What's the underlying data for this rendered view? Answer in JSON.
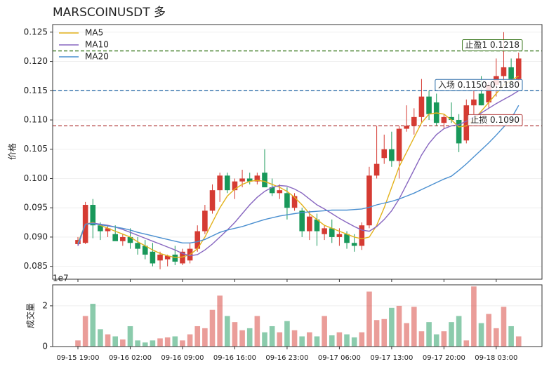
{
  "chart_data": {
    "type": "candlestick",
    "title": "MARSCOINUSDT  多",
    "ylabel": "价格",
    "categories": [
      "09-15 19:00",
      null,
      null,
      null,
      null,
      null,
      null,
      "09-16 02:00",
      null,
      null,
      null,
      null,
      null,
      null,
      "09-16 09:00",
      null,
      null,
      null,
      null,
      null,
      null,
      "09-16 16:00",
      null,
      null,
      null,
      null,
      null,
      null,
      "09-16 23:00",
      null,
      null,
      null,
      null,
      null,
      null,
      "09-17 06:00",
      null,
      null,
      null,
      null,
      null,
      null,
      "09-17 13:00",
      null,
      null,
      null,
      null,
      null,
      null,
      "09-17 20:00",
      null,
      null,
      null,
      null,
      null,
      null,
      "09-18 03:00",
      null,
      null,
      null
    ],
    "open": [
      0.0888,
      0.089,
      0.0955,
      0.092,
      0.091,
      0.0905,
      0.0893,
      0.09,
      0.089,
      0.0885,
      0.0875,
      0.086,
      0.0862,
      0.087,
      0.0855,
      0.086,
      0.088,
      0.091,
      0.0945,
      0.098,
      0.1005,
      0.098,
      0.0995,
      0.1,
      0.0995,
      0.101,
      0.0985,
      0.0975,
      0.0975,
      0.095,
      0.0945,
      0.091,
      0.093,
      0.0905,
      0.0915,
      0.09,
      0.0905,
      0.089,
      0.0885,
      0.092,
      0.1005,
      0.1035,
      0.105,
      0.103,
      0.1085,
      0.109,
      0.1105,
      0.114,
      0.113,
      0.1095,
      0.1105,
      0.11,
      0.1065,
      0.1125,
      0.1145,
      0.113,
      0.116,
      0.1175,
      0.119,
      0.117
    ],
    "high": [
      0.09,
      0.096,
      0.0965,
      0.0925,
      0.092,
      0.092,
      0.0905,
      0.0915,
      0.09,
      0.0895,
      0.089,
      0.0875,
      0.087,
      0.0885,
      0.088,
      0.089,
      0.092,
      0.0955,
      0.099,
      0.101,
      0.101,
      0.1,
      0.1015,
      0.101,
      0.101,
      0.105,
      0.1,
      0.099,
      0.0985,
      0.0975,
      0.095,
      0.0945,
      0.094,
      0.092,
      0.093,
      0.0915,
      0.091,
      0.0905,
      0.0925,
      0.102,
      0.109,
      0.1075,
      0.108,
      0.109,
      0.1125,
      0.112,
      0.117,
      0.115,
      0.1145,
      0.111,
      0.113,
      0.111,
      0.1135,
      0.115,
      0.1175,
      0.1165,
      0.1205,
      0.125,
      0.1205,
      0.1215
    ],
    "low": [
      0.0885,
      0.0888,
      0.0898,
      0.0895,
      0.09,
      0.0895,
      0.0885,
      0.088,
      0.087,
      0.0862,
      0.085,
      0.0845,
      0.085,
      0.0852,
      0.0852,
      0.0855,
      0.0875,
      0.0905,
      0.094,
      0.096,
      0.0975,
      0.0965,
      0.0985,
      0.099,
      0.099,
      0.0985,
      0.097,
      0.0965,
      0.093,
      0.0945,
      0.09,
      0.0895,
      0.0885,
      0.0895,
      0.089,
      0.0885,
      0.088,
      0.0875,
      0.0878,
      0.0915,
      0.1,
      0.1025,
      0.102,
      0.1,
      0.108,
      0.1075,
      0.1095,
      0.11,
      0.109,
      0.1085,
      0.1095,
      0.1045,
      0.106,
      0.111,
      0.1125,
      0.112,
      0.114,
      0.1165,
      0.116,
      0.1165
    ],
    "close": [
      0.0895,
      0.0955,
      0.092,
      0.091,
      0.0915,
      0.0893,
      0.09,
      0.089,
      0.088,
      0.087,
      0.0855,
      0.087,
      0.0868,
      0.0858,
      0.0875,
      0.088,
      0.091,
      0.0945,
      0.098,
      0.1005,
      0.098,
      0.0995,
      0.1,
      0.0995,
      0.1005,
      0.0985,
      0.0975,
      0.098,
      0.095,
      0.097,
      0.091,
      0.0935,
      0.091,
      0.0915,
      0.09,
      0.0905,
      0.089,
      0.0885,
      0.092,
      0.1005,
      0.1025,
      0.105,
      0.103,
      0.1085,
      0.109,
      0.1105,
      0.114,
      0.111,
      0.1095,
      0.1105,
      0.11,
      0.106,
      0.1125,
      0.1135,
      0.1125,
      0.116,
      0.1175,
      0.119,
      0.117,
      0.1205
    ],
    "up_color": "#d53b33",
    "down_color": "#18985a",
    "ylim": [
      0.0828,
      0.1263
    ],
    "yticks": [
      0.085,
      {
        "value": 0.09,
        "label": "0.090"
      },
      0.095,
      {
        "value": 0.1,
        "label": "0.100"
      },
      0.105,
      {
        "value": 0.11,
        "label": "0.110"
      },
      0.115,
      {
        "value": 0.12,
        "label": "0.120"
      },
      0.125
    ],
    "grid": true,
    "legend": "upper left",
    "series": [
      {
        "name": "MA5",
        "color": "#e3b21c",
        "values": [
          0.089,
          0.0922,
          0.0925,
          0.092,
          0.0915,
          0.091,
          0.0905,
          0.09,
          0.0892,
          0.0885,
          0.0878,
          0.0872,
          0.0868,
          0.0865,
          0.0866,
          0.087,
          0.088,
          0.09,
          0.0925,
          0.095,
          0.097,
          0.0982,
          0.099,
          0.0995,
          0.0997,
          0.0995,
          0.099,
          0.0985,
          0.0978,
          0.0968,
          0.0955,
          0.094,
          0.093,
          0.092,
          0.0915,
          0.091,
          0.0905,
          0.09,
          0.0897,
          0.09,
          0.092,
          0.095,
          0.0985,
          0.102,
          0.1045,
          0.107,
          0.1095,
          0.111,
          0.1112,
          0.111,
          0.11,
          0.1088,
          0.109,
          0.11,
          0.1115,
          0.113,
          0.1145,
          0.116,
          0.1168,
          0.1175
        ]
      },
      {
        "name": "MA10",
        "color": "#8766c0",
        "values": [
          0.0885,
          0.0922,
          0.0924,
          0.0922,
          0.092,
          0.0917,
          0.0913,
          0.0908,
          0.0903,
          0.0898,
          0.0893,
          0.0888,
          0.0883,
          0.0878,
          0.0872,
          0.0868,
          0.087,
          0.0878,
          0.0888,
          0.09,
          0.0912,
          0.0925,
          0.094,
          0.0955,
          0.0968,
          0.0978,
          0.0985,
          0.0988,
          0.0987,
          0.0982,
          0.0975,
          0.0965,
          0.0955,
          0.0948,
          0.094,
          0.0932,
          0.0925,
          0.0918,
          0.0912,
          0.091,
          0.0918,
          0.093,
          0.0945,
          0.0965,
          0.099,
          0.1015,
          0.104,
          0.106,
          0.1075,
          0.1085,
          0.109,
          0.1092,
          0.1098,
          0.1105,
          0.1112,
          0.112,
          0.1128,
          0.1135,
          0.1142,
          0.115
        ]
      },
      {
        "name": "MA20",
        "color": "#4a8fd0",
        "values": [
          0.0888,
          0.0922,
          0.0923,
          0.0921,
          0.0919,
          0.0917,
          0.0915,
          0.0912,
          0.0908,
          0.0905,
          0.0902,
          0.0899,
          0.0896,
          0.0893,
          0.089,
          0.089,
          0.0892,
          0.0896,
          0.0902,
          0.0908,
          0.0912,
          0.0915,
          0.0918,
          0.0922,
          0.0926,
          0.093,
          0.0933,
          0.0936,
          0.0938,
          0.094,
          0.0942,
          0.0943,
          0.0944,
          0.0945,
          0.0946,
          0.0946,
          0.0946,
          0.0947,
          0.0948,
          0.0951,
          0.0955,
          0.0958,
          0.0961,
          0.0965,
          0.097,
          0.0975,
          0.0981,
          0.0987,
          0.0993,
          0.0999,
          0.1004,
          0.1014,
          0.1025,
          0.1037,
          0.1049,
          0.1061,
          0.1074,
          0.1088,
          0.1102,
          0.1125
        ]
      }
    ],
    "levels": [
      {
        "label": "止盈1 0.1218",
        "value": 0.1218,
        "color": "#3d7a22"
      },
      {
        "label": "入场 0.1150-0.1180",
        "value": 0.115,
        "color": "#2b6ca8"
      },
      {
        "label": "止损 0.1090",
        "value": 0.109,
        "color": "#b03838"
      }
    ],
    "volume": {
      "label": "成交量",
      "offset_label": "1e7",
      "values": [
        0.3,
        1.5,
        2.1,
        0.85,
        0.6,
        0.5,
        0.35,
        1.0,
        0.3,
        0.2,
        0.3,
        0.4,
        0.45,
        0.5,
        0.3,
        0.6,
        1.0,
        0.9,
        1.8,
        2.5,
        1.5,
        1.2,
        0.8,
        0.9,
        1.5,
        0.7,
        1.0,
        0.7,
        1.25,
        0.8,
        0.5,
        0.7,
        0.5,
        1.5,
        0.55,
        0.7,
        0.6,
        0.45,
        0.7,
        2.7,
        1.3,
        1.35,
        1.9,
        2.0,
        1.15,
        1.95,
        0.75,
        1.2,
        0.6,
        0.75,
        1.2,
        1.5,
        0.3,
        2.95,
        1.15,
        1.6,
        0.9,
        1.95,
        1.0,
        0.5
      ],
      "ylim": [
        0,
        3.03
      ],
      "yticks": [
        0,
        2
      ]
    }
  }
}
